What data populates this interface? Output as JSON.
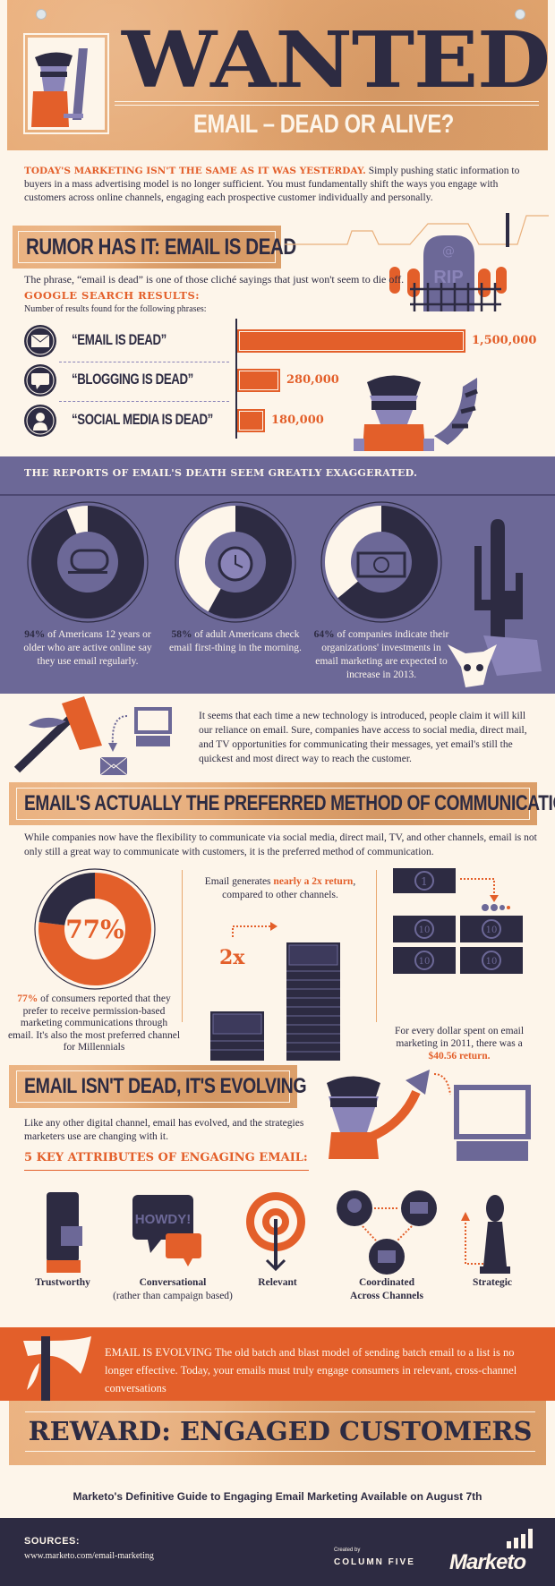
{
  "colors": {
    "tan": "#e9a86f",
    "cream": "#fdf5ea",
    "navy": "#2d2b42",
    "orange": "#e35f2a",
    "purple": "#6c6897",
    "lilac": "#8a84b8"
  },
  "header": {
    "title": "WANTED",
    "subtitle": "EMAIL – DEAD OR ALIVE?"
  },
  "intro": {
    "lead": "TODAY'S MARKETING ISN'T THE SAME AS IT WAS YESTERDAY.",
    "text": "Simply pushing static information to buyers in a mass advertising model is no longer sufficient. You must fundamentally shift the ways you engage with customers across online channels, engaging each prospective customer individually and personally."
  },
  "rumor": {
    "title": "RUMOR HAS IT: EMAIL IS DEAD",
    "tombstone": "RIP",
    "tombstone_symbol": "@",
    "text": "The phrase, “email is dead” is one of those cliché sayings that just won't seem to die off.",
    "search_title": "GOOGLE SEARCH RESULTS:",
    "search_sub": "Number of results found for the following phrases:",
    "bars": [
      {
        "label": "“EMAIL IS DEAD”",
        "value": 1500000,
        "display": "1,500,000",
        "icon": "envelope-icon"
      },
      {
        "label": "“BLOGGING IS DEAD”",
        "value": 280000,
        "display": "280,000",
        "icon": "speech-bubble-icon"
      },
      {
        "label": "“SOCIAL MEDIA IS DEAD”",
        "value": 180000,
        "display": "180,000",
        "icon": "person-icon"
      }
    ]
  },
  "reports": {
    "title": "THE REPORTS OF EMAIL'S DEATH SEEM GREATLY EXAGGERATED.",
    "stats": [
      {
        "percent": 94,
        "pct_label": "94%",
        "text": " of Americans 12 years or older who are active online say they use email regularly.",
        "icon": "mailbox-icon"
      },
      {
        "percent": 58,
        "pct_label": "58%",
        "text": " of adult Americans check email first-thing in the morning.",
        "icon": "alarm-clock-icon"
      },
      {
        "percent": 64,
        "pct_label": "64%",
        "text": " of companies indicate their organizations' investments in email marketing are expected to increase in 2013.",
        "icon": "dollar-bill-icon"
      }
    ]
  },
  "tech": {
    "text": "It seems that each time a new technology is introduced, people claim it will kill our reliance on email. Sure, companies have access to social media, direct mail, and TV opportunities for communicating their messages, yet email's still the quickest and most direct way to reach the customer."
  },
  "preferred": {
    "title": "EMAIL'S ACTUALLY THE PREFERRED METHOD OF COMMUNICATION",
    "text": "While companies now have the flexibility to communicate via social media, direct mail, TV, and other channels, email is not only still a great way to communicate with customers, it is the preferred method of communication.",
    "col1": {
      "percent": 77,
      "pct_label": "77%",
      "text": " of consumers reported that they prefer to receive permission-based marketing communications through email. It's also the most preferred channel for Millennials"
    },
    "col2": {
      "pre": "Email generates ",
      "highlight": "nearly a 2x return",
      "post": ", compared to other channels.",
      "multiplier": "2x"
    },
    "col3": {
      "bill_one": "1",
      "bill_ten": "10",
      "text": "For every dollar spent on email marketing in 2011, there was a ",
      "highlight": "$40.56 return."
    }
  },
  "evolving": {
    "title": "EMAIL ISN'T DEAD, IT'S EVOLVING",
    "text": "Like any other digital channel, email has evolved, and the strategies marketers use are changing with it.",
    "attr_title": "5 KEY ATTRIBUTES OF ENGAGING EMAIL:",
    "bubble": "HOWDY!",
    "attributes": [
      {
        "label": "Trustworthy",
        "sub": "",
        "icon": "scout-hand-icon"
      },
      {
        "label": "Conversational",
        "sub": "(rather than campaign based)",
        "icon": "speech-bubbles-icon"
      },
      {
        "label": "Relevant",
        "sub": "",
        "icon": "target-icon"
      },
      {
        "label": "Coordinated",
        "sub": "Across Channels",
        "icon": "channels-icon"
      },
      {
        "label": "Strategic",
        "sub": "",
        "icon": "chess-bishop-icon"
      }
    ]
  },
  "band": {
    "text": "EMAIL IS EVOLVING The old batch and blast model of sending batch email to a list is no longer effective. Today, your emails must truly engage consumers in relevant, cross-channel conversations"
  },
  "reward": {
    "title": "REWARD: ENGAGED CUSTOMERS"
  },
  "guide": {
    "text": "Marketo's Definitive Guide to Engaging Email Marketing Available on August 7th"
  },
  "footer": {
    "sources_label": "SOURCES:",
    "source_url": "www.marketo.com/email-marketing",
    "created_by": "Created by",
    "column_five": "COLUMN FIVE",
    "marketo": "Marketo"
  }
}
